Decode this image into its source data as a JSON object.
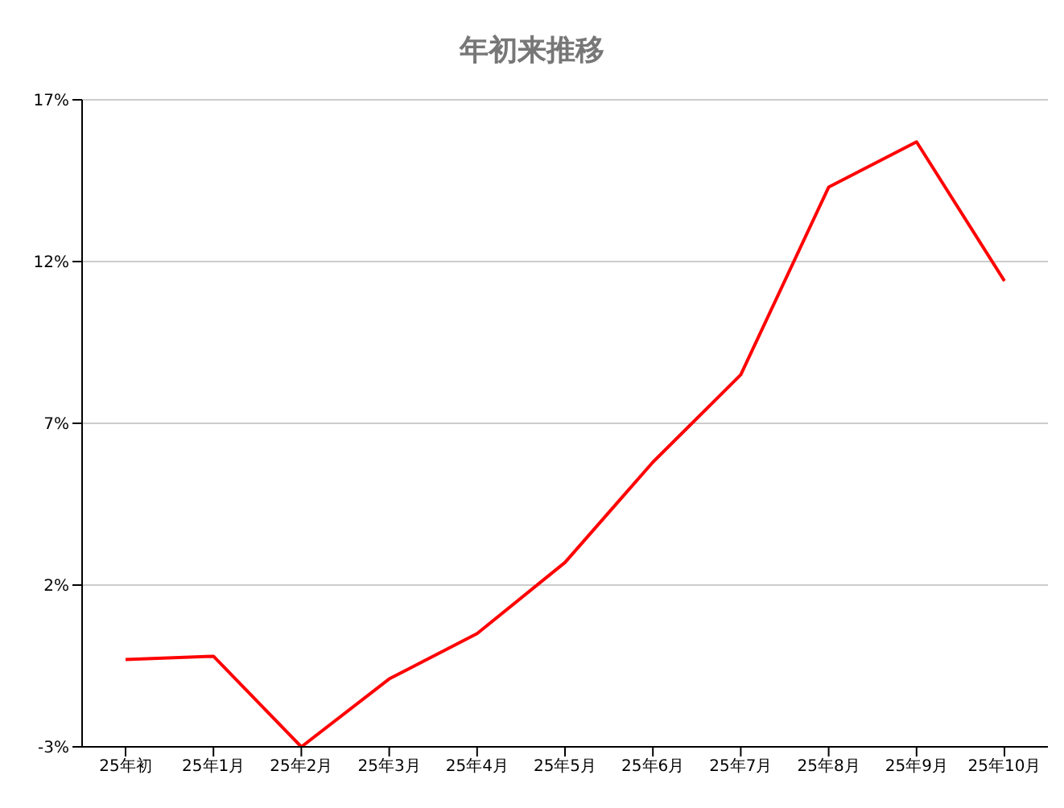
{
  "chart_data": {
    "type": "line",
    "title": "年初来推移",
    "categories": [
      "25年初",
      "25年1月",
      "25年2月",
      "25年3月",
      "25年4月",
      "25年5月",
      "25年6月",
      "25年7月",
      "25年8月",
      "25年9月",
      "25年10月"
    ],
    "series": [
      {
        "color": "#ff0000",
        "values": [
          -0.3,
          -0.2,
          -3.0,
          -0.9,
          0.5,
          2.7,
          5.8,
          8.5,
          14.3,
          15.7,
          11.4
        ]
      }
    ],
    "ylim": [
      -3,
      17
    ],
    "yticks": [
      {
        "value": -3,
        "label": "-3%"
      },
      {
        "value": 2,
        "label": "2%"
      },
      {
        "value": 7,
        "label": "7%"
      },
      {
        "value": 12,
        "label": "12%"
      },
      {
        "value": 17,
        "label": "17%"
      }
    ],
    "grid": "y",
    "legend": false,
    "marker": "none",
    "line_style": "solid"
  }
}
